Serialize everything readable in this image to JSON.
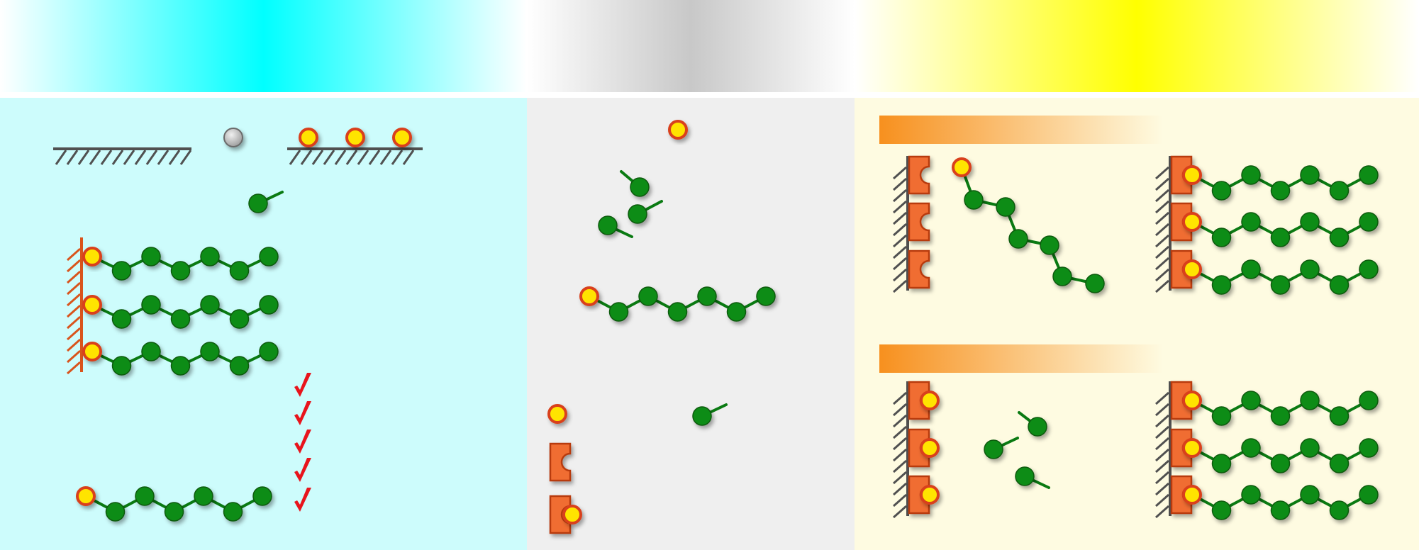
{
  "header_bands": [
    {
      "name": "cyan",
      "color": "#00ffff"
    },
    {
      "name": "gray",
      "color": "#c8c8c8"
    },
    {
      "name": "yellow",
      "color": "#ffff00"
    }
  ],
  "panels": [
    {
      "name": "left",
      "background": "#cdfcfc"
    },
    {
      "name": "middle",
      "background": "#efefef"
    },
    {
      "name": "right",
      "background": "#fefbe1"
    }
  ],
  "colors": {
    "monomer": "#0e8c16",
    "monomer_outline": "#0a5a0e",
    "bond": "#0a7a12",
    "initiator_fill": "#ffe400",
    "initiator_ring": "#d9401a",
    "surface": "#505050",
    "surface_orange": "#d9541c",
    "anchor_fill": "#f06d33",
    "anchor_outline": "#b83a10",
    "check": "#e8141c",
    "gray_sphere": "#c4c4c4",
    "orange_bar": "#f7901e"
  },
  "icons": [
    "check-icon",
    "check-icon",
    "check-icon",
    "check-icon",
    "check-icon"
  ]
}
